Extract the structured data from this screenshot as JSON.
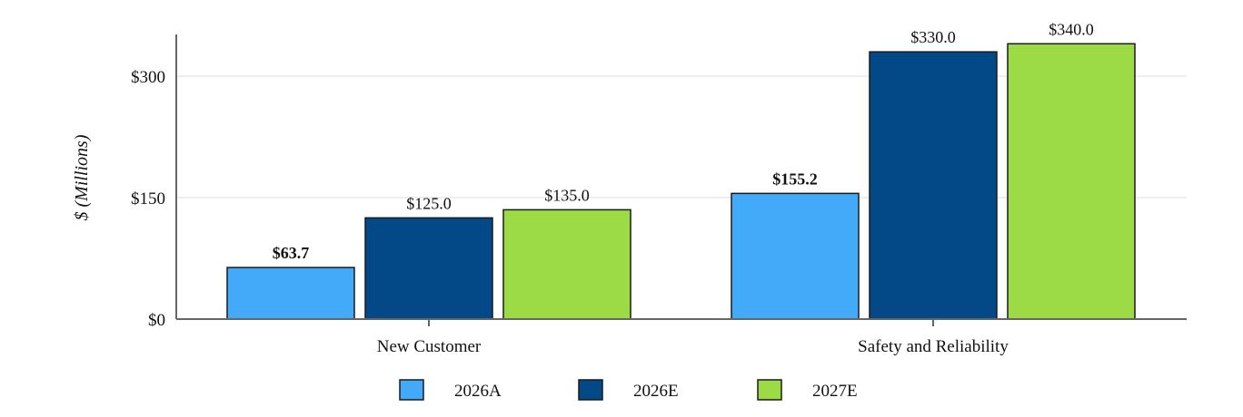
{
  "chart_data": {
    "type": "bar",
    "title": "",
    "xlabel": "",
    "ylabel": "$ (Millions)",
    "ylim": [
      0,
      340
    ],
    "yticks": [
      0,
      150,
      300
    ],
    "ytick_labels": [
      "$0",
      "$150",
      "$300"
    ],
    "grid": true,
    "legend_position": "bottom",
    "categories": [
      "New Customer",
      "Safety and Reliability"
    ],
    "series": [
      {
        "name": "2026A",
        "color": "#42aaf9",
        "values": [
          63.7,
          155.2
        ],
        "labels": [
          "$63.7",
          "$155.2"
        ],
        "label_bold": true
      },
      {
        "name": "2026E",
        "color": "#034887",
        "values": [
          125.0,
          330.0
        ],
        "labels": [
          "$125.0",
          "$330.0"
        ],
        "label_bold": false
      },
      {
        "name": "2027E",
        "color": "#9ddb46",
        "values": [
          135.0,
          340.0
        ],
        "labels": [
          "$135.0",
          "$340.0"
        ],
        "label_bold": false
      }
    ]
  }
}
